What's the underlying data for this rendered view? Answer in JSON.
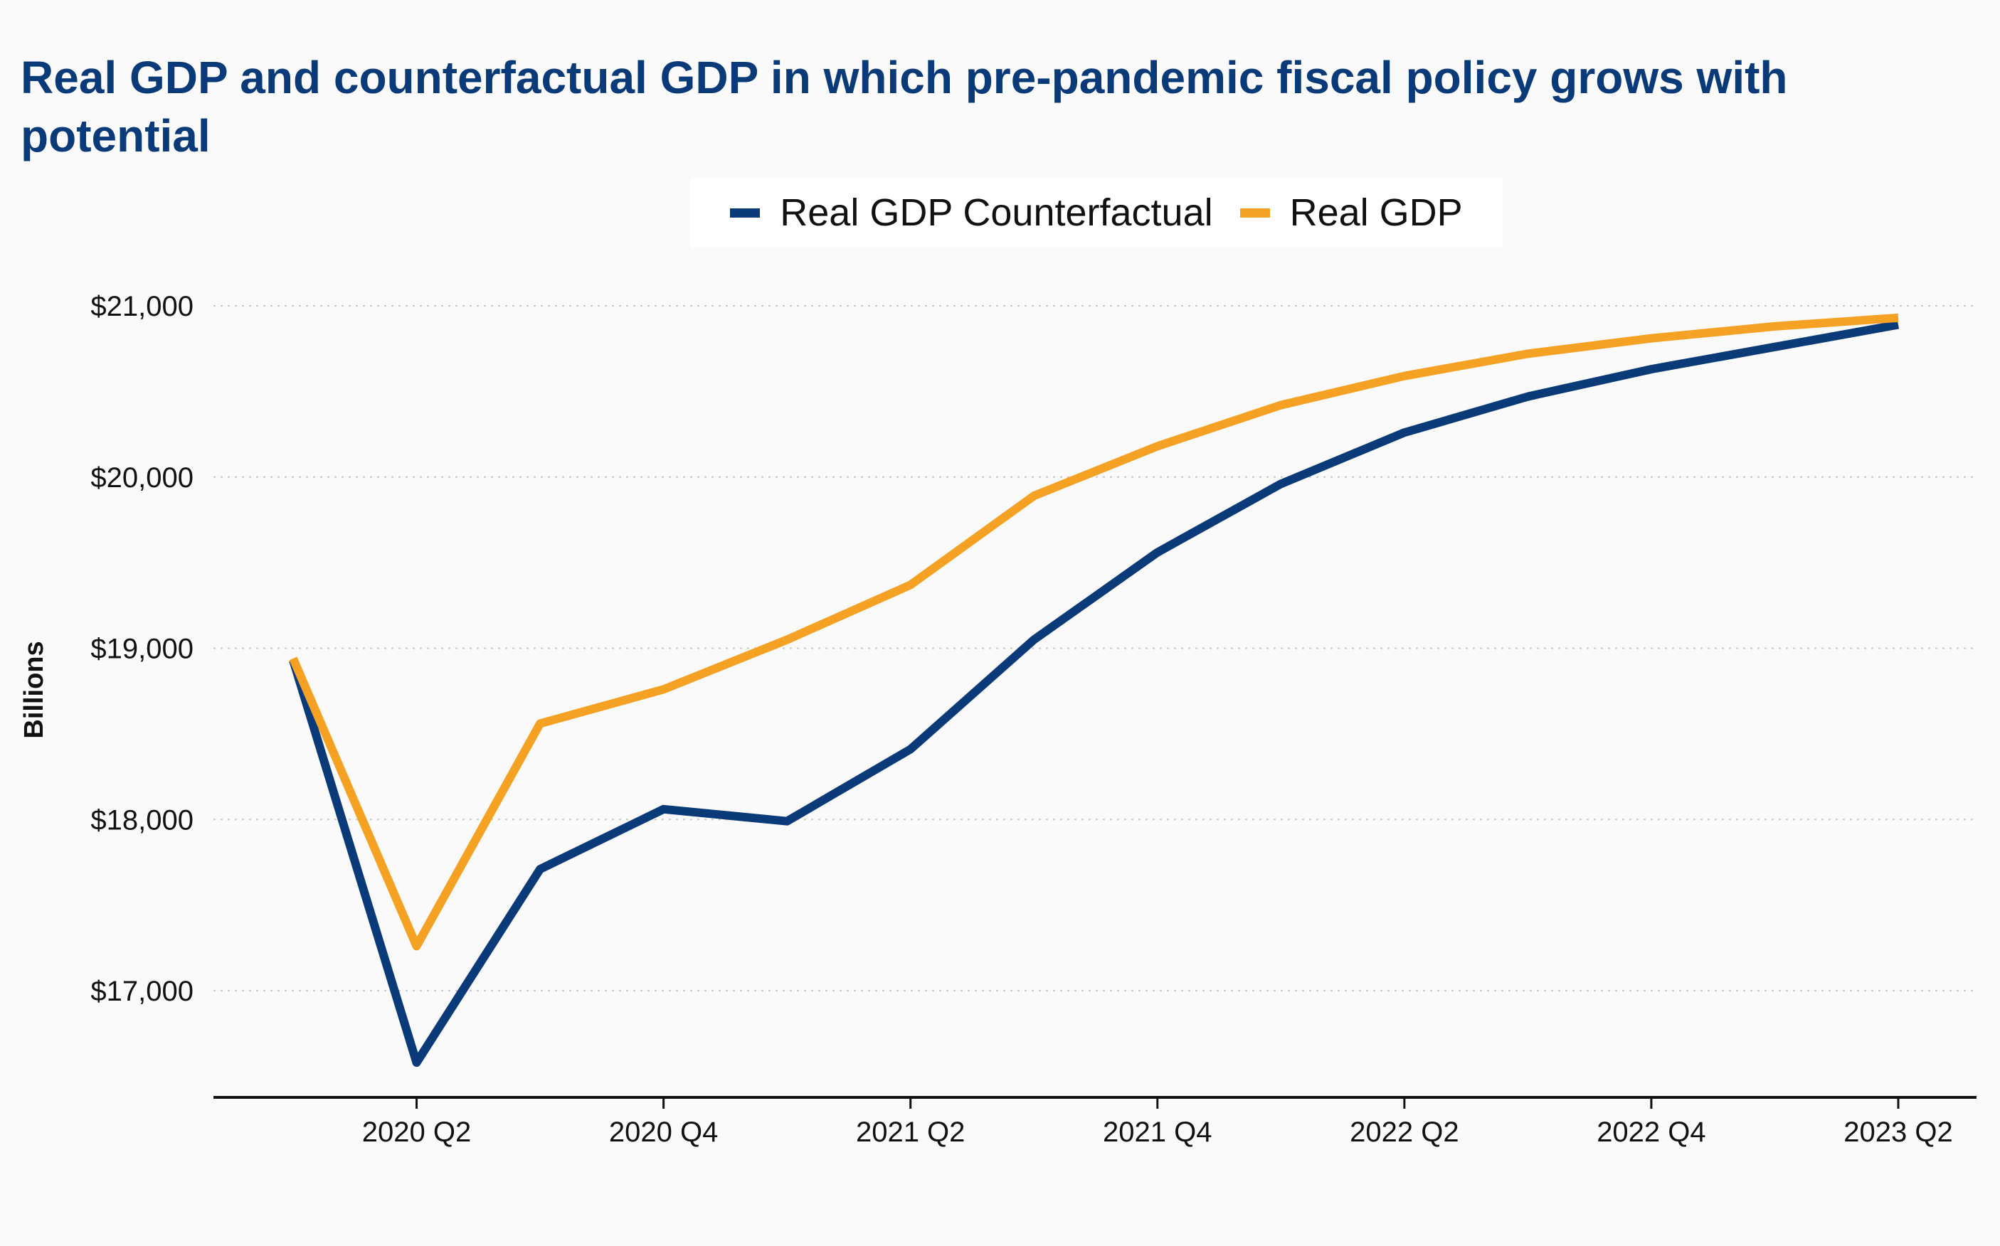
{
  "chart_data": {
    "type": "line",
    "title": "Real GDP and counterfactual GDP in which pre-pandemic fiscal policy grows with potential",
    "xlabel": "",
    "ylabel": "Billions",
    "x": [
      "2020 Q1",
      "2020 Q2",
      "2020 Q3",
      "2020 Q4",
      "2021 Q1",
      "2021 Q2",
      "2021 Q3",
      "2021 Q4",
      "2022 Q1",
      "2022 Q2",
      "2022 Q3",
      "2022 Q4",
      "2023 Q1",
      "2023 Q2"
    ],
    "x_tick_labels": [
      "2020 Q2",
      "2020 Q4",
      "2021 Q2",
      "2021 Q4",
      "2022 Q2",
      "2022 Q4",
      "2023 Q2"
    ],
    "x_tick_indices": [
      1,
      3,
      5,
      7,
      9,
      11,
      13
    ],
    "y_ticks": [
      17000,
      18000,
      19000,
      20000,
      21000
    ],
    "y_tick_labels": [
      "$17,000",
      "$18,000",
      "$19,000",
      "$20,000",
      "$21,000"
    ],
    "ylim": [
      16380,
      21500
    ],
    "grid": "horizontal dotted",
    "legend_position": "top",
    "series": [
      {
        "name": "Real GDP Counterfactual",
        "color": "#0b3a78",
        "values": [
          18930,
          16580,
          17710,
          18060,
          17990,
          18410,
          19050,
          19560,
          19960,
          20260,
          20470,
          20630,
          20760,
          20890
        ]
      },
      {
        "name": "Real GDP",
        "color": "#f5a123",
        "values": [
          18940,
          17260,
          18560,
          18760,
          19050,
          19370,
          19890,
          20180,
          20420,
          20590,
          20720,
          20810,
          20880,
          20930
        ]
      }
    ]
  }
}
